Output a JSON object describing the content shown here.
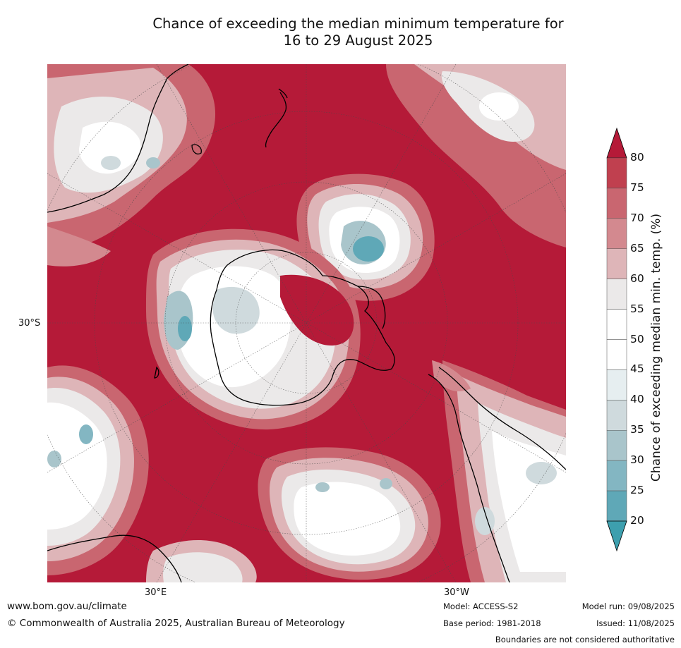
{
  "title": {
    "line1": "Chance of exceeding the median minimum temperature for",
    "line2": "16 to 29 August 2025"
  },
  "map": {
    "projection": "south-polar-stereographic",
    "region": "Southern Hemisphere",
    "graticule": {
      "lat_label": "30°S",
      "lon_labels": [
        "30°E",
        "30°W"
      ]
    },
    "dominant_category": "80+",
    "colors": {
      "gt80": "#b51a38",
      "c75_80": "#c0404f",
      "c70_75": "#c96670",
      "c65_70": "#d3898f",
      "c60_65": "#deb5b8",
      "c55_60": "#ebe9e9",
      "c45_55": "#ffffff",
      "c40_45": "#e6eef0",
      "c35_40": "#cfdadd",
      "c30_35": "#a9c5cb",
      "c25_30": "#83b6c2",
      "c20_25": "#5fa8b7",
      "lt20": "#3d9fae"
    }
  },
  "colorbar": {
    "label": "Chance of exceeding median min. temp. (%)",
    "ticks": [
      "80",
      "75",
      "70",
      "65",
      "60",
      "55",
      "50",
      "45",
      "40",
      "35",
      "30",
      "25",
      "20"
    ],
    "levels": [
      {
        "range": "75-80",
        "color": "#c0404f"
      },
      {
        "range": "70-75",
        "color": "#c96670"
      },
      {
        "range": "65-70",
        "color": "#d3898f"
      },
      {
        "range": "60-65",
        "color": "#deb5b8"
      },
      {
        "range": "55-60",
        "color": "#ebe9e9"
      },
      {
        "range": "50-55",
        "color": "#ffffff"
      },
      {
        "range": "45-50",
        "color": "#ffffff"
      },
      {
        "range": "40-45",
        "color": "#e6eef0"
      },
      {
        "range": "35-40",
        "color": "#cfdadd"
      },
      {
        "range": "30-35",
        "color": "#a9c5cb"
      },
      {
        "range": "25-30",
        "color": "#83b6c2"
      },
      {
        "range": "20-25",
        "color": "#5fa8b7"
      }
    ],
    "top_extend_color": "#b51a38",
    "bottom_extend_color": "#3d9fae"
  },
  "footer": {
    "website": "www.bom.gov.au/climate",
    "copyright": "© Commonwealth of Australia 2025, Australian Bureau of Meteorology",
    "model": "Model: ACCESS-S2",
    "base_period": "Base period: 1981-2018",
    "model_run": "Model run: 09/08/2025",
    "issued": "Issued: 11/08/2025",
    "disclaimer": "Boundaries are not considered authoritative"
  }
}
